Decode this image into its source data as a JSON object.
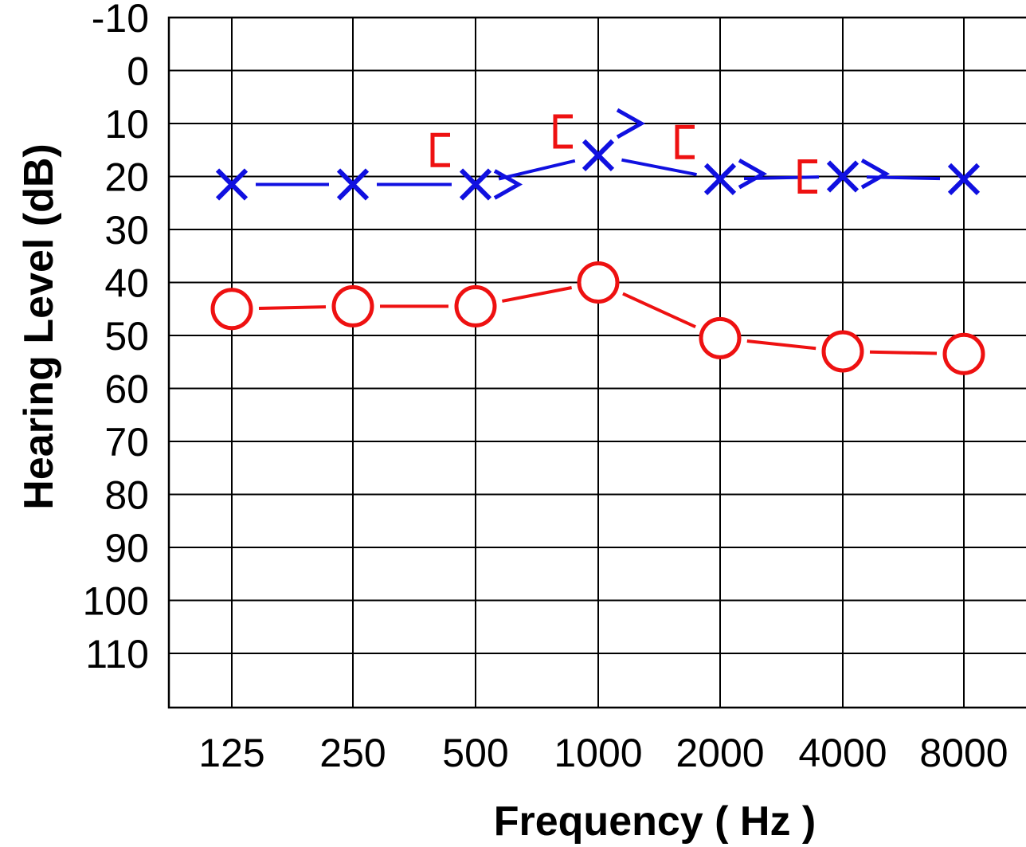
{
  "chart_data": {
    "type": "line",
    "xlabel": "Frequency ( Hz )",
    "ylabel": "Hearing Level (dB)",
    "categories": [
      "125",
      "250",
      "500",
      "1000",
      "2000",
      "4000",
      "8000"
    ],
    "y_ticks": [
      "-10",
      "0",
      "10",
      "20",
      "30",
      "40",
      "50",
      "60",
      "70",
      "80",
      "90",
      "100",
      "110"
    ],
    "ylim": [
      -10,
      120
    ],
    "y_inverted": true,
    "grid": true,
    "series": [
      {
        "marker": "x",
        "color": "#1010e0",
        "values": [
          21.5,
          21.5,
          21.5,
          16,
          20.5,
          20,
          20.5
        ],
        "connected": true
      },
      {
        "marker": "circle",
        "color": "#ee1111",
        "values": [
          45,
          44.5,
          44.5,
          40,
          50.5,
          53,
          53.5
        ],
        "connected": true
      },
      {
        "marker": ">",
        "color": "#1010e0",
        "x": [
          "500",
          "1000",
          "2000",
          "4000"
        ],
        "values": [
          21.5,
          10,
          19.5,
          19.5
        ],
        "connected": false
      },
      {
        "marker": "[",
        "color": "#ee1111",
        "x": [
          "500",
          "1000",
          "2000",
          "4000"
        ],
        "values": [
          15,
          11.5,
          13.5,
          20
        ],
        "connected": false
      }
    ]
  }
}
